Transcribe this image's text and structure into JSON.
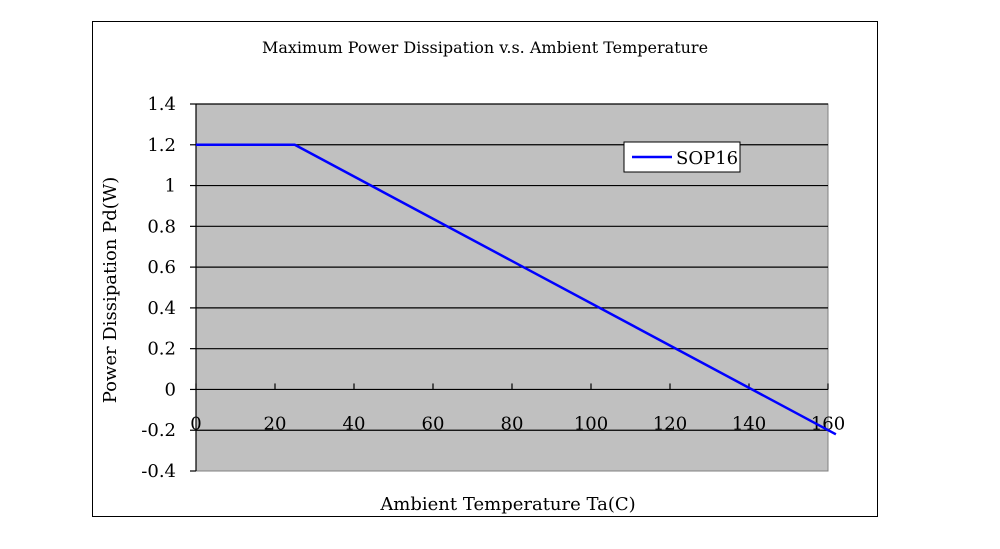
{
  "chart_data": {
    "type": "line",
    "title": "Maximum Power Dissipation v.s. Ambient Temperature",
    "xlabel": "Ambient Temperature Ta(C)",
    "ylabel": "Power Dissipation Pd(W)",
    "xlim": [
      0,
      160
    ],
    "ylim": [
      -0.4,
      1.4
    ],
    "xticks": [
      0,
      20,
      40,
      60,
      80,
      100,
      120,
      140,
      160
    ],
    "xtick_labels": [
      "0",
      "20",
      "40",
      "60",
      "80",
      "100",
      "120",
      "140",
      "160"
    ],
    "yticks": [
      1.4,
      1.2,
      1,
      0.8,
      0.6,
      0.4,
      0.2,
      0,
      -0.2,
      -0.4
    ],
    "ytick_labels": [
      "1.4",
      "1.2",
      "1",
      "0.8",
      "0.6",
      "0.4",
      "0.2",
      "0",
      "-0.2",
      "-0.4"
    ],
    "grid": "horizontal",
    "legend_position": "top-right",
    "plot_background": "#c0c0c0",
    "series": [
      {
        "name": "SOP16",
        "color": "#0000ff",
        "x": [
          0,
          25,
          162
        ],
        "y": [
          1.2,
          1.2,
          -0.22
        ]
      }
    ]
  }
}
